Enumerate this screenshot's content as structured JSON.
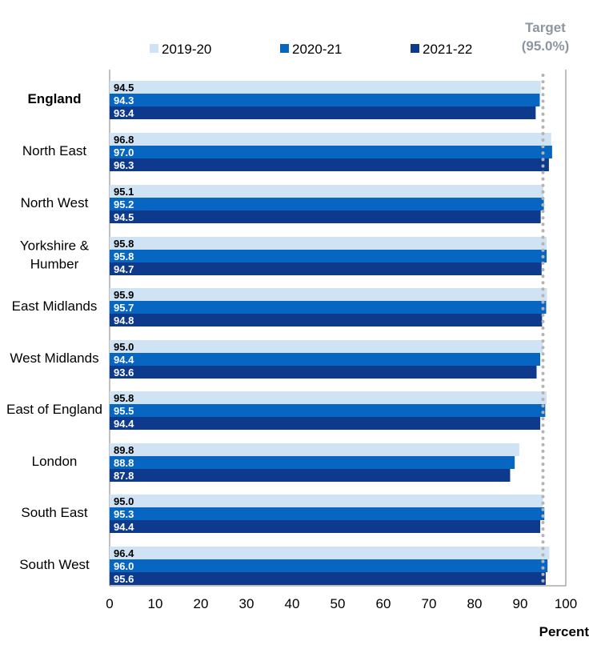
{
  "chart_data": {
    "type": "bar",
    "orientation": "horizontal",
    "categories": [
      "England",
      "North East",
      "North West",
      "Yorkshire & Humber",
      "East Midlands",
      "West Midlands",
      "East of England",
      "London",
      "South East",
      "South West"
    ],
    "category_lines": [
      [
        "England"
      ],
      [
        "North East"
      ],
      [
        "North West"
      ],
      [
        "Yorkshire &",
        "Humber"
      ],
      [
        "East Midlands"
      ],
      [
        "West Midlands"
      ],
      [
        "East of England"
      ],
      [
        "London"
      ],
      [
        "South East"
      ],
      [
        "South West"
      ]
    ],
    "bold_categories": [
      "England"
    ],
    "series": [
      {
        "name": "2019-20",
        "color": "#cfe3f5",
        "label_color": "#000000",
        "values": [
          94.5,
          96.8,
          95.1,
          95.8,
          95.9,
          95.0,
          95.8,
          89.8,
          95.0,
          96.4
        ],
        "labels": [
          "94.5",
          "96.8",
          "95.1",
          "95.8",
          "95.9",
          "95.0",
          "95.8",
          "89.8",
          "95.0",
          "96.4"
        ]
      },
      {
        "name": "2020-21",
        "color": "#0766c2",
        "label_color": "#ffffff",
        "values": [
          94.3,
          97.0,
          95.2,
          95.8,
          95.7,
          94.4,
          95.5,
          88.8,
          95.3,
          96.0
        ],
        "labels": [
          "94.3",
          "97.0",
          "95.2",
          "95.8",
          "95.7",
          "94.4",
          "95.5",
          "88.8",
          "95.3",
          "96.0"
        ]
      },
      {
        "name": "2021-22",
        "color": "#0d3a8c",
        "label_color": "#ffffff",
        "values": [
          93.4,
          96.3,
          94.5,
          94.7,
          94.8,
          93.6,
          94.4,
          87.8,
          94.4,
          95.6
        ],
        "labels": [
          "93.4",
          "96.3",
          "94.5",
          "94.7",
          "94.8",
          "93.6",
          "94.4",
          "87.8",
          "94.4",
          "95.6"
        ]
      }
    ],
    "xlim": [
      0,
      100
    ],
    "xticks": [
      0,
      10,
      20,
      30,
      40,
      50,
      60,
      70,
      80,
      90,
      100
    ],
    "xlabel": "Percent",
    "target": {
      "value": 95.0,
      "label_lines": [
        "Target",
        "(95.0%)"
      ],
      "color": "#b4b4b4"
    },
    "legend_position": "top",
    "grid": false
  }
}
